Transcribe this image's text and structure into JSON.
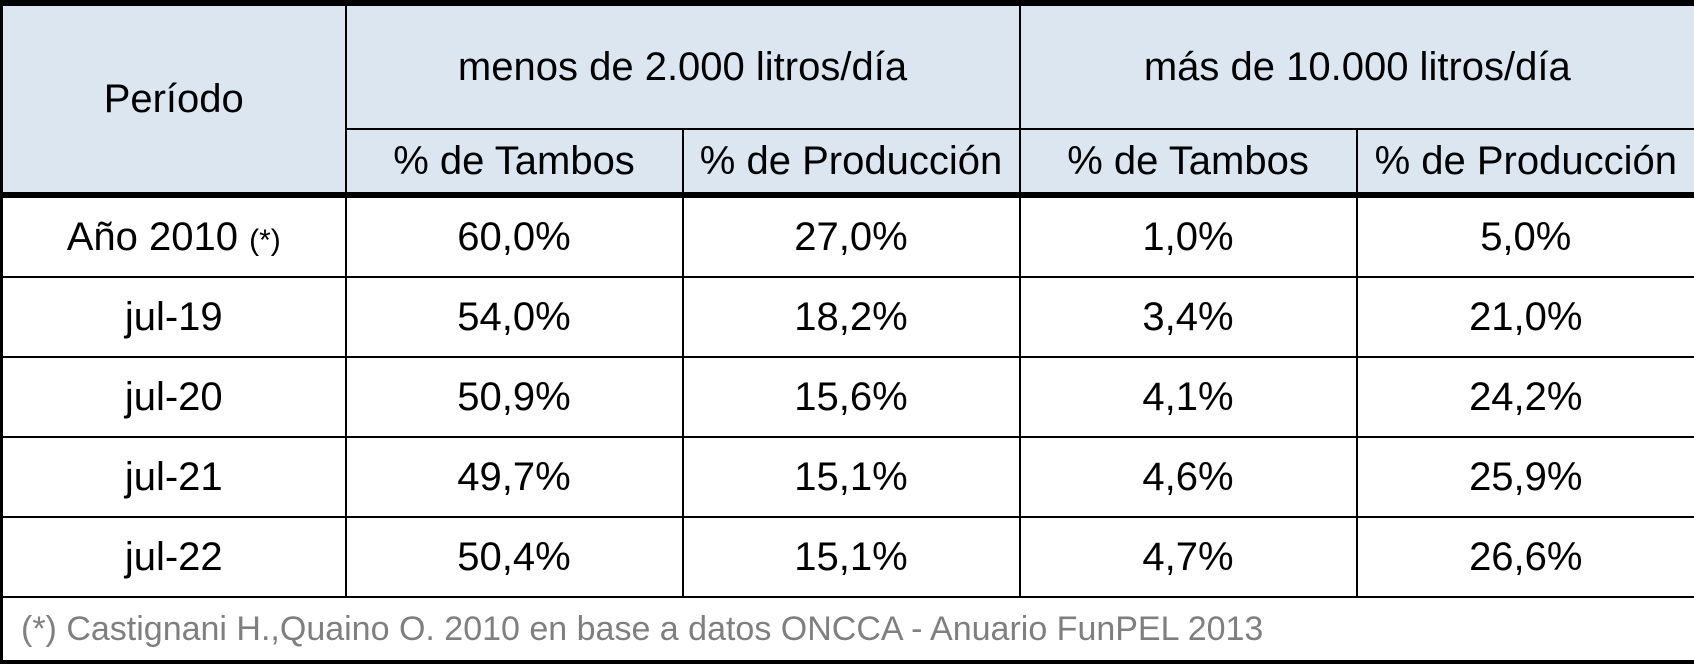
{
  "table": {
    "header": {
      "periodo": "Período",
      "group_1": "menos de 2.000 litros/día",
      "group_2": "más de 10.000 litros/día",
      "sub_1": "% de Tambos",
      "sub_2": "% de Producción",
      "sub_3": "% de Tambos",
      "sub_4": "% de Producción"
    },
    "rows": [
      {
        "period": "Año 2010",
        "note": "(*)",
        "tambos_small": "60,0%",
        "prod_small": "27,0%",
        "tambos_large": "1,0%",
        "prod_large": "5,0%"
      },
      {
        "period": "jul-19",
        "tambos_small": "54,0%",
        "prod_small": "18,2%",
        "tambos_large": "3,4%",
        "prod_large": "21,0%"
      },
      {
        "period": "jul-20",
        "tambos_small": "50,9%",
        "prod_small": "15,6%",
        "tambos_large": "4,1%",
        "prod_large": "24,2%"
      },
      {
        "period": "jul-21",
        "tambos_small": "49,7%",
        "prod_small": "15,1%",
        "tambos_large": "4,6%",
        "prod_large": "25,9%"
      },
      {
        "period": "jul-22",
        "tambos_small": "50,4%",
        "prod_small": "15,1%",
        "tambos_large": "4,7%",
        "prod_large": "26,6%"
      }
    ],
    "footnote": "(*) Castignani H.,Quaino O. 2010 en base a datos ONCCA - Anuario FunPEL 2013"
  },
  "colors": {
    "header_background": "#dce6f1",
    "footnote_text": "#7f7f7f",
    "border": "#000000"
  }
}
